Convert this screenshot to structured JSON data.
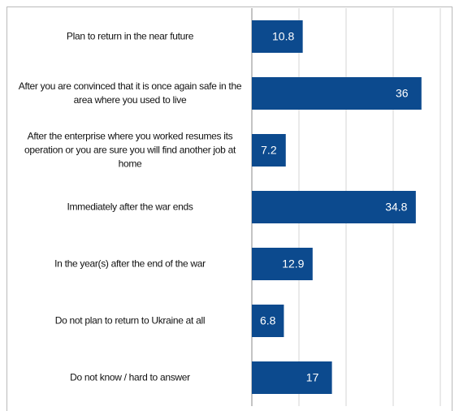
{
  "chart_data": {
    "type": "bar",
    "orientation": "horizontal",
    "categories": [
      "Plan to return in the near future",
      "After you are convinced that it is once again safe in the area where you used to live",
      "After the enterprise where you worked resumes its operation or you are sure you will find another job at home",
      "Immediately after the war ends",
      "In the year(s) after the end of the war",
      "Do not plan to return to Ukraine at all",
      "Do not know / hard to answer"
    ],
    "values": [
      10.8,
      36,
      7.2,
      34.8,
      12.9,
      6.8,
      17
    ],
    "color": "#0c4a8e",
    "xlim": [
      0,
      40
    ],
    "xticks": [
      0,
      10,
      20,
      30,
      40
    ],
    "grid": true
  }
}
